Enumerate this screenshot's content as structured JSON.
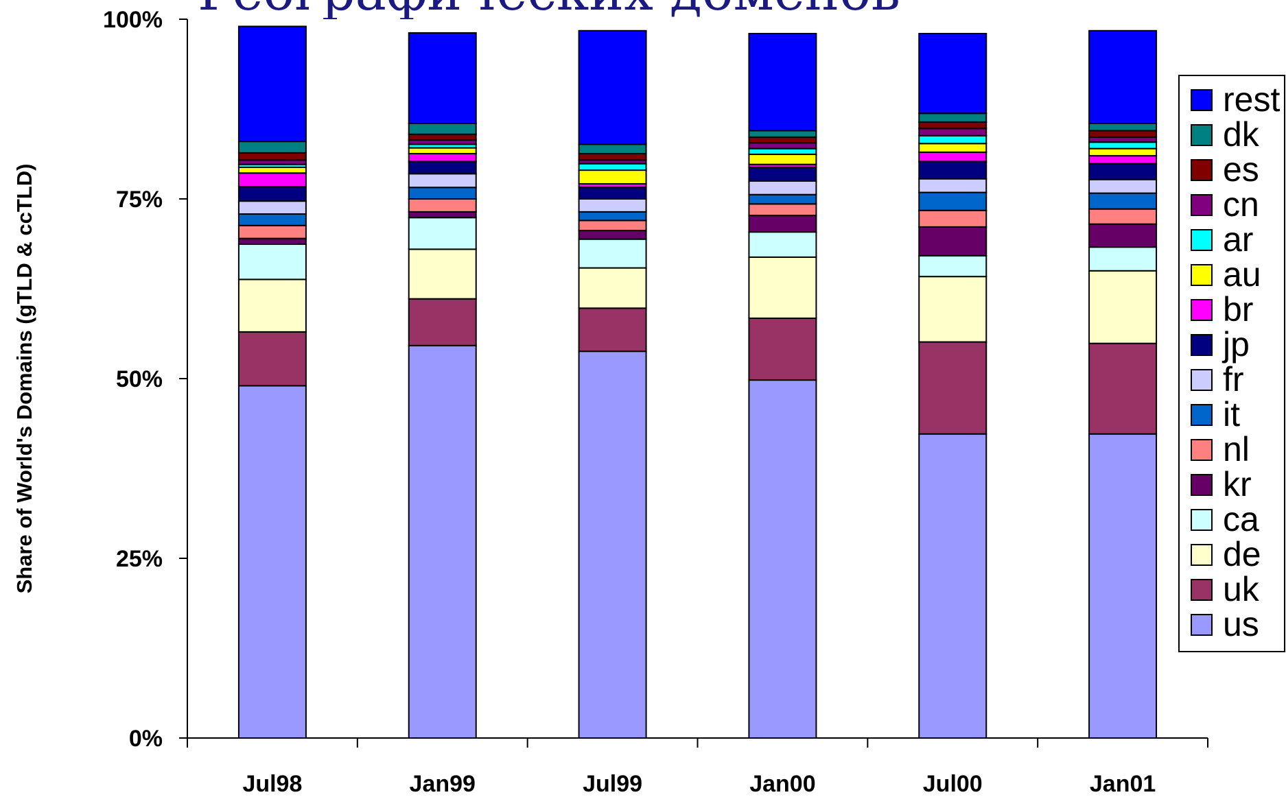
{
  "chart_data": {
    "type": "bar",
    "stacked": true,
    "title": "Географических доменов",
    "xlabel": "",
    "ylabel": "Share of World's Domains (gTLD & ccTLD)",
    "ylim": [
      0,
      100
    ],
    "yticks": [
      "0%",
      "25%",
      "50%",
      "75%",
      "100%"
    ],
    "categories": [
      "Jul98",
      "Jan99",
      "Jul99",
      "Jan00",
      "Jul00",
      "Jan01"
    ],
    "legend_position": "right",
    "grid": false,
    "series": [
      {
        "name": "us",
        "color": "#9999ff",
        "values": [
          49.0,
          54.6,
          53.8,
          49.8,
          42.3,
          42.3
        ]
      },
      {
        "name": "uk",
        "color": "#993366",
        "values": [
          7.5,
          6.5,
          6.0,
          8.6,
          12.8,
          12.6
        ]
      },
      {
        "name": "de",
        "color": "#ffffcc",
        "values": [
          7.3,
          6.9,
          5.6,
          8.5,
          9.1,
          10.1
        ]
      },
      {
        "name": "ca",
        "color": "#ccffff",
        "values": [
          4.9,
          4.4,
          4.0,
          3.5,
          2.9,
          3.3
        ]
      },
      {
        "name": "kr",
        "color": "#660066",
        "values": [
          0.8,
          0.8,
          1.2,
          2.3,
          4.0,
          3.2
        ]
      },
      {
        "name": "nl",
        "color": "#ff8080",
        "values": [
          1.8,
          1.8,
          1.4,
          1.6,
          2.3,
          2.1
        ]
      },
      {
        "name": "it",
        "color": "#0066cc",
        "values": [
          1.6,
          1.6,
          1.2,
          1.3,
          2.5,
          2.2
        ]
      },
      {
        "name": "fr",
        "color": "#ccccff",
        "values": [
          1.8,
          1.9,
          1.8,
          1.9,
          1.9,
          1.9
        ]
      },
      {
        "name": "jp",
        "color": "#000080",
        "values": [
          2.0,
          1.7,
          1.6,
          1.9,
          2.4,
          2.2
        ]
      },
      {
        "name": "br",
        "color": "#ff00ff",
        "values": [
          1.9,
          1.1,
          0.5,
          0.4,
          1.3,
          1.1
        ]
      },
      {
        "name": "au",
        "color": "#ffff00",
        "values": [
          0.8,
          0.8,
          1.9,
          1.4,
          1.2,
          1.0
        ]
      },
      {
        "name": "ar",
        "color": "#00ffff",
        "values": [
          0.4,
          0.5,
          0.9,
          0.8,
          1.1,
          0.9
        ]
      },
      {
        "name": "cn",
        "color": "#800080",
        "values": [
          0.6,
          0.6,
          0.5,
          0.8,
          1.0,
          0.7
        ]
      },
      {
        "name": "es",
        "color": "#800000",
        "values": [
          1.0,
          0.8,
          0.9,
          0.8,
          0.9,
          0.9
        ]
      },
      {
        "name": "dk",
        "color": "#008080",
        "values": [
          1.6,
          1.5,
          1.3,
          0.9,
          1.2,
          1.0
        ]
      },
      {
        "name": "rest",
        "color": "#0000ff",
        "values": [
          16.0,
          12.6,
          15.8,
          13.5,
          11.1,
          12.9
        ]
      }
    ]
  }
}
